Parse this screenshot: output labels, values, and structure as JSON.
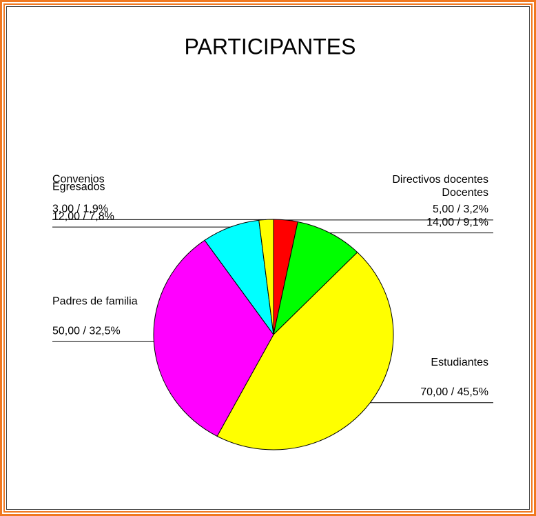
{
  "chart_data": {
    "type": "pie",
    "title": "PARTICIPANTES",
    "categories": [
      "Directivos docentes",
      "Docentes",
      "Estudiantes",
      "Padres de familia",
      "Egresados",
      "Convenios"
    ],
    "values": [
      5,
      14,
      70,
      50,
      12,
      3
    ],
    "value_labels": [
      "5,00 / 3,2%",
      "14,00 / 9,1%",
      "70,00 / 45,5%",
      "50,00 / 32,5%",
      "12,00 / 7,8%",
      "3,00 / 1,9%"
    ],
    "colors": [
      "#ff0000",
      "#00ff00",
      "#ffff00",
      "#ff00ff",
      "#00ffff",
      "#ffff00"
    ]
  }
}
